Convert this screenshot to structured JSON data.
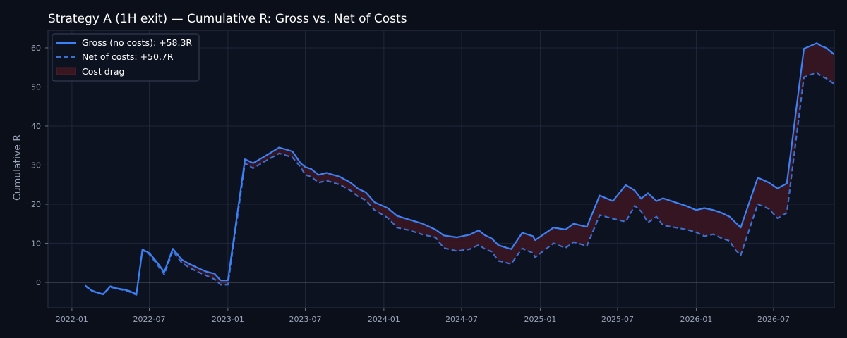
{
  "chart_data": {
    "type": "line",
    "title": "Strategy A (1H exit) — Cumulative R: Gross vs. Net of Costs",
    "xlabel": "",
    "ylabel": "Cumulative R",
    "xlim": [
      "2021-11-06",
      "2026-11-20"
    ],
    "ylim": [
      -6.5,
      64.5
    ],
    "x_ticks": [
      "2022-01",
      "2022-07",
      "2023-01",
      "2023-07",
      "2024-01",
      "2024-07",
      "2025-01",
      "2025-07",
      "2026-01",
      "2026-07"
    ],
    "y_ticks": [
      0,
      10,
      20,
      30,
      40,
      50,
      60
    ],
    "grid": true,
    "legend_position": "top-left",
    "colors": {
      "background": "#0b0f1a",
      "plot_background": "#0d1220",
      "grid": "#1f2738",
      "gross": "#3b82f6",
      "net": "#3b6fd0",
      "cost_drag": "#3a1621",
      "zero_line": "#6b7280"
    },
    "series": [
      {
        "name": "Gross (no costs): +58.3R",
        "style": "solid",
        "points": [
          [
            "2022-02-01",
            -0.8
          ],
          [
            "2022-02-15",
            -2.0
          ],
          [
            "2022-03-01",
            -2.6
          ],
          [
            "2022-03-15",
            -3.0
          ],
          [
            "2022-04-01",
            -1.0
          ],
          [
            "2022-04-15",
            -1.5
          ],
          [
            "2022-05-01",
            -1.8
          ],
          [
            "2022-05-15",
            -2.2
          ],
          [
            "2022-06-01",
            -3.0
          ],
          [
            "2022-06-15",
            8.4
          ],
          [
            "2022-07-01",
            7.5
          ],
          [
            "2022-07-20",
            5.0
          ],
          [
            "2022-08-05",
            2.6
          ],
          [
            "2022-08-25",
            8.6
          ],
          [
            "2022-09-15",
            5.8
          ],
          [
            "2022-10-01",
            4.8
          ],
          [
            "2022-10-20",
            3.8
          ],
          [
            "2022-11-10",
            2.8
          ],
          [
            "2022-12-01",
            2.2
          ],
          [
            "2022-12-15",
            0.5
          ],
          [
            "2023-01-01",
            0.5
          ],
          [
            "2023-02-10",
            31.5
          ],
          [
            "2023-03-01",
            30.5
          ],
          [
            "2023-04-01",
            32.5
          ],
          [
            "2023-05-01",
            34.5
          ],
          [
            "2023-06-01",
            33.5
          ],
          [
            "2023-06-20",
            30.5
          ],
          [
            "2023-07-01",
            29.5
          ],
          [
            "2023-07-15",
            29.0
          ],
          [
            "2023-08-01",
            27.5
          ],
          [
            "2023-08-20",
            28.0
          ],
          [
            "2023-09-20",
            27.0
          ],
          [
            "2023-10-15",
            25.5
          ],
          [
            "2023-11-01",
            24.0
          ],
          [
            "2023-11-20",
            23.0
          ],
          [
            "2023-12-10",
            20.5
          ],
          [
            "2024-01-10",
            19.0
          ],
          [
            "2024-02-01",
            17.0
          ],
          [
            "2024-03-01",
            16.0
          ],
          [
            "2024-04-01",
            15.0
          ],
          [
            "2024-05-01",
            13.5
          ],
          [
            "2024-05-20",
            12.0
          ],
          [
            "2024-06-20",
            11.5
          ],
          [
            "2024-07-20",
            12.2
          ],
          [
            "2024-08-10",
            13.3
          ],
          [
            "2024-08-25",
            12.0
          ],
          [
            "2024-09-10",
            11.2
          ],
          [
            "2024-09-25",
            9.5
          ],
          [
            "2024-10-25",
            8.5
          ],
          [
            "2024-11-20",
            12.7
          ],
          [
            "2024-12-15",
            11.8
          ],
          [
            "2024-12-20",
            10.8
          ],
          [
            "2025-02-01",
            14.0
          ],
          [
            "2025-03-01",
            13.5
          ],
          [
            "2025-03-20",
            15.0
          ],
          [
            "2025-04-20",
            14.2
          ],
          [
            "2025-05-20",
            22.2
          ],
          [
            "2025-06-20",
            20.8
          ],
          [
            "2025-07-20",
            24.9
          ],
          [
            "2025-08-10",
            23.5
          ],
          [
            "2025-08-25",
            21.4
          ],
          [
            "2025-09-10",
            22.8
          ],
          [
            "2025-09-30",
            20.8
          ],
          [
            "2025-10-15",
            21.5
          ],
          [
            "2025-12-10",
            19.5
          ],
          [
            "2026-01-01",
            18.5
          ],
          [
            "2026-01-20",
            19.0
          ],
          [
            "2026-02-10",
            18.5
          ],
          [
            "2026-03-01",
            17.8
          ],
          [
            "2026-03-20",
            16.8
          ],
          [
            "2026-04-01",
            15.5
          ],
          [
            "2026-04-15",
            14.0
          ],
          [
            "2026-05-25",
            26.8
          ],
          [
            "2026-06-20",
            25.5
          ],
          [
            "2026-07-10",
            24.0
          ],
          [
            "2026-08-01",
            25.3
          ],
          [
            "2026-09-10",
            59.8
          ],
          [
            "2026-10-10",
            61.2
          ],
          [
            "2026-10-20",
            60.5
          ],
          [
            "2026-11-01",
            60.0
          ],
          [
            "2026-11-20",
            58.3
          ]
        ]
      },
      {
        "name": "Net of costs: +50.7R",
        "style": "dashed",
        "points": [
          [
            "2022-02-01",
            -0.9
          ],
          [
            "2022-02-15",
            -2.1
          ],
          [
            "2022-03-01",
            -2.7
          ],
          [
            "2022-03-15",
            -3.1
          ],
          [
            "2022-04-01",
            -1.2
          ],
          [
            "2022-04-15",
            -1.6
          ],
          [
            "2022-05-01",
            -2.0
          ],
          [
            "2022-05-15",
            -2.4
          ],
          [
            "2022-06-01",
            -3.2
          ],
          [
            "2022-06-15",
            8.2
          ],
          [
            "2022-07-01",
            7.2
          ],
          [
            "2022-07-20",
            4.5
          ],
          [
            "2022-08-05",
            2.0
          ],
          [
            "2022-08-25",
            8.0
          ],
          [
            "2022-09-15",
            5.0
          ],
          [
            "2022-10-01",
            3.9
          ],
          [
            "2022-10-20",
            2.8
          ],
          [
            "2022-11-10",
            1.8
          ],
          [
            "2022-12-01",
            0.8
          ],
          [
            "2022-12-15",
            -0.6
          ],
          [
            "2023-01-01",
            -0.6
          ],
          [
            "2023-02-10",
            30.5
          ],
          [
            "2023-03-01",
            29.2
          ],
          [
            "2023-04-01",
            31.2
          ],
          [
            "2023-05-01",
            33.0
          ],
          [
            "2023-06-01",
            32.0
          ],
          [
            "2023-06-20",
            29.5
          ],
          [
            "2023-07-01",
            27.5
          ],
          [
            "2023-07-15",
            27.0
          ],
          [
            "2023-08-01",
            25.5
          ],
          [
            "2023-08-20",
            26.0
          ],
          [
            "2023-09-20",
            25.0
          ],
          [
            "2023-10-15",
            23.5
          ],
          [
            "2023-11-01",
            22.0
          ],
          [
            "2023-11-20",
            21.0
          ],
          [
            "2023-12-10",
            18.5
          ],
          [
            "2024-01-10",
            16.5
          ],
          [
            "2024-02-01",
            14.0
          ],
          [
            "2024-03-01",
            13.3
          ],
          [
            "2024-04-01",
            12.2
          ],
          [
            "2024-05-01",
            11.5
          ],
          [
            "2024-05-20",
            8.8
          ],
          [
            "2024-06-20",
            8.0
          ],
          [
            "2024-07-20",
            8.5
          ],
          [
            "2024-08-10",
            9.6
          ],
          [
            "2024-08-25",
            8.5
          ],
          [
            "2024-09-10",
            7.8
          ],
          [
            "2024-09-25",
            5.5
          ],
          [
            "2024-10-25",
            4.7
          ],
          [
            "2024-11-20",
            8.7
          ],
          [
            "2024-12-15",
            7.5
          ],
          [
            "2024-12-20",
            6.4
          ],
          [
            "2025-02-01",
            10.0
          ],
          [
            "2025-03-01",
            8.8
          ],
          [
            "2025-03-20",
            10.3
          ],
          [
            "2025-04-20",
            9.3
          ],
          [
            "2025-05-20",
            17.2
          ],
          [
            "2025-06-20",
            16.3
          ],
          [
            "2025-07-20",
            15.5
          ],
          [
            "2025-08-10",
            19.6
          ],
          [
            "2025-08-25",
            18.2
          ],
          [
            "2025-09-10",
            15.3
          ],
          [
            "2025-09-30",
            16.8
          ],
          [
            "2025-10-15",
            14.6
          ],
          [
            "2025-12-10",
            13.5
          ],
          [
            "2026-01-01",
            12.8
          ],
          [
            "2026-01-20",
            11.8
          ],
          [
            "2026-02-10",
            12.3
          ],
          [
            "2026-03-01",
            11.3
          ],
          [
            "2026-03-20",
            10.6
          ],
          [
            "2026-04-01",
            8.5
          ],
          [
            "2026-04-15",
            6.9
          ],
          [
            "2026-05-25",
            20.0
          ],
          [
            "2026-06-20",
            18.8
          ],
          [
            "2026-07-10",
            16.4
          ],
          [
            "2026-08-01",
            17.8
          ],
          [
            "2026-09-10",
            52.5
          ],
          [
            "2026-10-10",
            53.7
          ],
          [
            "2026-10-20",
            52.8
          ],
          [
            "2026-11-01",
            52.2
          ],
          [
            "2026-11-20",
            50.7
          ]
        ]
      }
    ],
    "fill_between": {
      "name": "Cost drag"
    }
  }
}
